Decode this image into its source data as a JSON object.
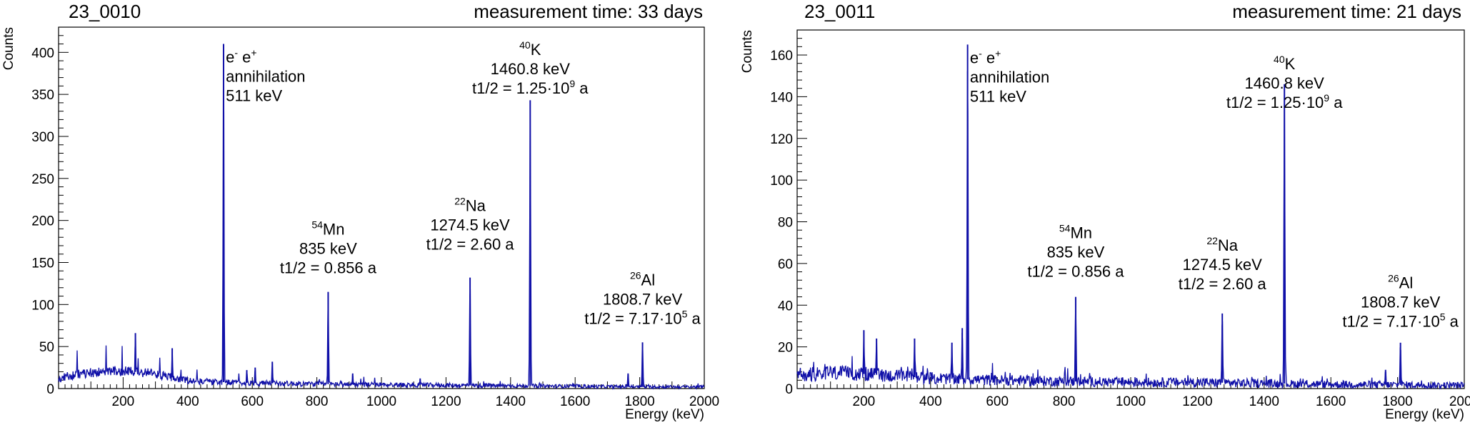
{
  "chart_data": [
    {
      "type": "line",
      "title": "23_0010",
      "subtitle": "measurement time: 33 days",
      "xlabel": "Energy (keV)",
      "ylabel": "Counts",
      "xlim": [
        0,
        2000
      ],
      "ylim": [
        0,
        430
      ],
      "xticks": [
        200,
        400,
        600,
        800,
        1000,
        1200,
        1400,
        1600,
        1800,
        2000
      ],
      "yticks": [
        0,
        50,
        100,
        150,
        200,
        250,
        300,
        350,
        400
      ],
      "grid": false,
      "color": "#1010a8",
      "baseline": [
        [
          0,
          10
        ],
        [
          20,
          14
        ],
        [
          60,
          17
        ],
        [
          100,
          19
        ],
        [
          140,
          20
        ],
        [
          180,
          21
        ],
        [
          230,
          20
        ],
        [
          280,
          19
        ],
        [
          330,
          15
        ],
        [
          380,
          11
        ],
        [
          420,
          9
        ],
        [
          480,
          8
        ],
        [
          560,
          7
        ],
        [
          700,
          6
        ],
        [
          900,
          5
        ],
        [
          1200,
          4
        ],
        [
          1500,
          3
        ],
        [
          1800,
          2
        ],
        [
          2000,
          2
        ]
      ],
      "peaks": [
        {
          "x": 238,
          "y": 66
        },
        {
          "x": 352,
          "y": 48
        },
        {
          "x": 511,
          "y": 410
        },
        {
          "x": 583,
          "y": 22
        },
        {
          "x": 609,
          "y": 25
        },
        {
          "x": 662,
          "y": 32
        },
        {
          "x": 835,
          "y": 115
        },
        {
          "x": 911,
          "y": 18
        },
        {
          "x": 1120,
          "y": 12
        },
        {
          "x": 1274.5,
          "y": 132
        },
        {
          "x": 1460.8,
          "y": 343
        },
        {
          "x": 1764,
          "y": 18
        },
        {
          "x": 1808.7,
          "y": 55
        }
      ],
      "annotations": [
        {
          "lines": [
            {
              "sup": "",
              "text": "e"
            },
            {
              "sup": "",
              "text": "annihilation"
            },
            {
              "sup": "",
              "text": "511 keV"
            }
          ],
          "anchor": "start",
          "x": 518,
          "y_top": 405,
          "particles": [
            "-",
            "+"
          ]
        },
        {
          "lines": [
            {
              "sup": "54",
              "text": "Mn"
            },
            {
              "sup": "",
              "text": "835 keV"
            },
            {
              "sup": "",
              "text": "t1/2 = 0.856 a"
            }
          ],
          "anchor": "middle",
          "x": 835,
          "y_top": 200
        },
        {
          "lines": [
            {
              "sup": "22",
              "text": "Na"
            },
            {
              "sup": "",
              "text": "1274.5 keV"
            },
            {
              "sup": "",
              "text": "t1/2 = 2.60 a"
            }
          ],
          "anchor": "middle",
          "x": 1274.5,
          "y_top": 228
        },
        {
          "lines": [
            {
              "sup": "40",
              "text": "K"
            },
            {
              "sup": "",
              "text": "1460.8 keV"
            },
            {
              "sup": "",
              "text": "t1/2 = 1.25·10"
            }
          ],
          "anchor": "middle",
          "x": 1460.8,
          "y_top": 414,
          "exp": "9"
        },
        {
          "lines": [
            {
              "sup": "26",
              "text": "Al"
            },
            {
              "sup": "",
              "text": "1808.7 keV"
            },
            {
              "sup": "",
              "text": "t1/2 = 7.17·10"
            }
          ],
          "anchor": "middle",
          "x": 1808.7,
          "y_top": 140,
          "exp": "5"
        }
      ]
    },
    {
      "type": "line",
      "title": "23_0011",
      "subtitle": "measurement time: 21 days",
      "xlabel": "Energy (keV)",
      "ylabel": "Counts",
      "xlim": [
        0,
        2000
      ],
      "ylim": [
        0,
        172
      ],
      "xticks": [
        200,
        400,
        600,
        800,
        1000,
        1200,
        1400,
        1600,
        1800,
        2000
      ],
      "yticks": [
        0,
        20,
        40,
        60,
        80,
        100,
        120,
        140,
        160
      ],
      "grid": false,
      "color": "#1010a8",
      "baseline": [
        [
          0,
          6
        ],
        [
          50,
          7
        ],
        [
          100,
          7.5
        ],
        [
          200,
          7
        ],
        [
          300,
          6
        ],
        [
          400,
          5
        ],
        [
          500,
          4.5
        ],
        [
          600,
          4
        ],
        [
          800,
          3.5
        ],
        [
          1000,
          3
        ],
        [
          1200,
          3
        ],
        [
          1400,
          2.5
        ],
        [
          1600,
          2
        ],
        [
          1800,
          1.8
        ],
        [
          2000,
          1.5
        ]
      ],
      "peaks": [
        {
          "x": 200,
          "y": 28
        },
        {
          "x": 238,
          "y": 24
        },
        {
          "x": 352,
          "y": 24
        },
        {
          "x": 464,
          "y": 22
        },
        {
          "x": 495,
          "y": 29
        },
        {
          "x": 511,
          "y": 165
        },
        {
          "x": 835,
          "y": 44
        },
        {
          "x": 1274.5,
          "y": 36
        },
        {
          "x": 1460.8,
          "y": 146
        },
        {
          "x": 1764,
          "y": 9
        },
        {
          "x": 1808.7,
          "y": 22
        }
      ],
      "annotations": [
        {
          "lines": [
            {
              "sup": "",
              "text": "e"
            },
            {
              "sup": "",
              "text": "annihilation"
            },
            {
              "sup": "",
              "text": "511 keV"
            }
          ],
          "anchor": "start",
          "x": 518,
          "y_top": 163,
          "particles": [
            "-",
            "+"
          ]
        },
        {
          "lines": [
            {
              "sup": "54",
              "text": "Mn"
            },
            {
              "sup": "",
              "text": "835 keV"
            },
            {
              "sup": "",
              "text": "t1/2 = 0.856 a"
            }
          ],
          "anchor": "middle",
          "x": 835,
          "y_top": 79
        },
        {
          "lines": [
            {
              "sup": "22",
              "text": "Na"
            },
            {
              "sup": "",
              "text": "1274.5 keV"
            },
            {
              "sup": "",
              "text": "t1/2 = 2.60 a"
            }
          ],
          "anchor": "middle",
          "x": 1274.5,
          "y_top": 73
        },
        {
          "lines": [
            {
              "sup": "40",
              "text": "K"
            },
            {
              "sup": "",
              "text": "1460.8 keV"
            },
            {
              "sup": "",
              "text": "t1/2 = 1.25·10"
            }
          ],
          "anchor": "middle",
          "x": 1460.8,
          "y_top": 160,
          "exp": "9"
        },
        {
          "lines": [
            {
              "sup": "26",
              "text": "Al"
            },
            {
              "sup": "",
              "text": "1808.7 keV"
            },
            {
              "sup": "",
              "text": "t1/2 = 7.17·10"
            }
          ],
          "anchor": "middle",
          "x": 1808.7,
          "y_top": 55,
          "exp": "5"
        }
      ]
    }
  ]
}
